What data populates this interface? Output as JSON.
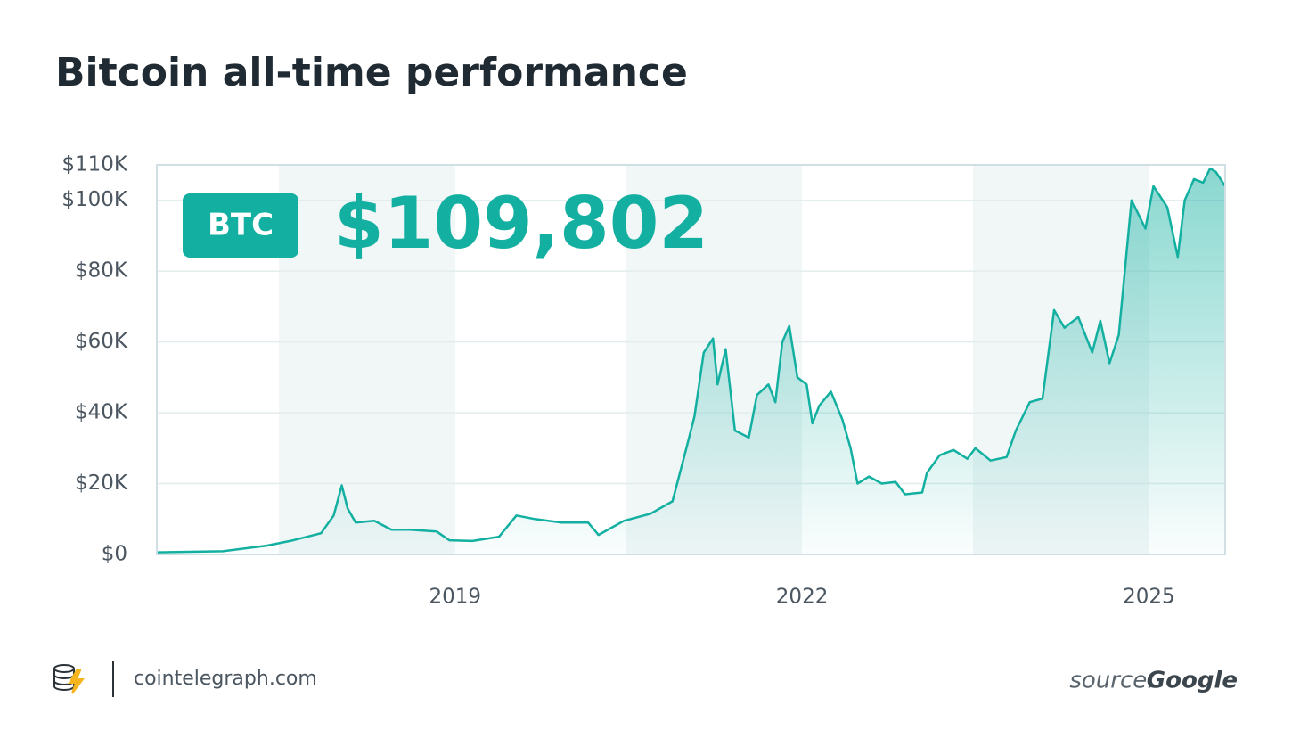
{
  "chart_data": {
    "type": "area",
    "title": "Bitcoin all-time performance",
    "badge": "BTC",
    "headline": "$109,802",
    "color": "#13b0a1",
    "x": [
      2016.42,
      2016.99,
      2017.37,
      2017.6,
      2017.84,
      2017.95,
      2018.02,
      2018.07,
      2018.14,
      2018.3,
      2018.45,
      2018.61,
      2018.84,
      2018.95,
      2019.15,
      2019.38,
      2019.53,
      2019.69,
      2019.92,
      2020.15,
      2020.24,
      2020.46,
      2020.69,
      2020.88,
      2021.0,
      2021.07,
      2021.15,
      2021.23,
      2021.27,
      2021.34,
      2021.42,
      2021.54,
      2021.61,
      2021.71,
      2021.77,
      2021.83,
      2021.89,
      2021.96,
      2022.04,
      2022.09,
      2022.15,
      2022.25,
      2022.35,
      2022.42,
      2022.48,
      2022.58,
      2022.69,
      2022.81,
      2022.89,
      2023.04,
      2023.08,
      2023.19,
      2023.31,
      2023.43,
      2023.5,
      2023.63,
      2023.77,
      2023.85,
      2023.97,
      2024.08,
      2024.18,
      2024.27,
      2024.39,
      2024.51,
      2024.58,
      2024.66,
      2024.74,
      2024.85,
      2024.97,
      2025.04,
      2025.16,
      2025.25,
      2025.31,
      2025.39,
      2025.47,
      2025.53,
      2025.58,
      2025.66
    ],
    "values": [
      600,
      900,
      2500,
      4000,
      6000,
      11000,
      19500,
      13000,
      9000,
      9500,
      7000,
      7000,
      6500,
      4000,
      3800,
      5000,
      11000,
      10000,
      9000,
      9000,
      5500,
      9500,
      11500,
      15000,
      30000,
      39000,
      57000,
      61000,
      48000,
      58000,
      35000,
      33000,
      45000,
      48000,
      43000,
      60000,
      64500,
      50000,
      48000,
      37000,
      42000,
      46000,
      38000,
      30000,
      20000,
      22000,
      20000,
      20500,
      17000,
      17500,
      23000,
      28000,
      29500,
      27000,
      30000,
      26500,
      27500,
      35000,
      43000,
      44000,
      69000,
      64000,
      67000,
      57000,
      66000,
      54000,
      62000,
      100000,
      92000,
      104000,
      98000,
      84000,
      100000,
      106000,
      105000,
      109000,
      108000,
      104000
    ],
    "xlim": [
      2016.42,
      2025.66
    ],
    "xticks": [
      2019,
      2022,
      2025
    ],
    "ylim": [
      0,
      110000
    ],
    "yticks": [
      {
        "value": 0,
        "label": "$0"
      },
      {
        "value": 20000,
        "label": "$20K"
      },
      {
        "value": 40000,
        "label": "$40K"
      },
      {
        "value": 60000,
        "label": "$60K"
      },
      {
        "value": 80000,
        "label": "$80K"
      },
      {
        "value": 100000,
        "label": "$100K"
      },
      {
        "value": 110000,
        "label": "$110K"
      }
    ],
    "grid": true
  },
  "footer": {
    "site": "cointelegraph.com",
    "source_prefix": "source:",
    "source_name": "Google"
  }
}
